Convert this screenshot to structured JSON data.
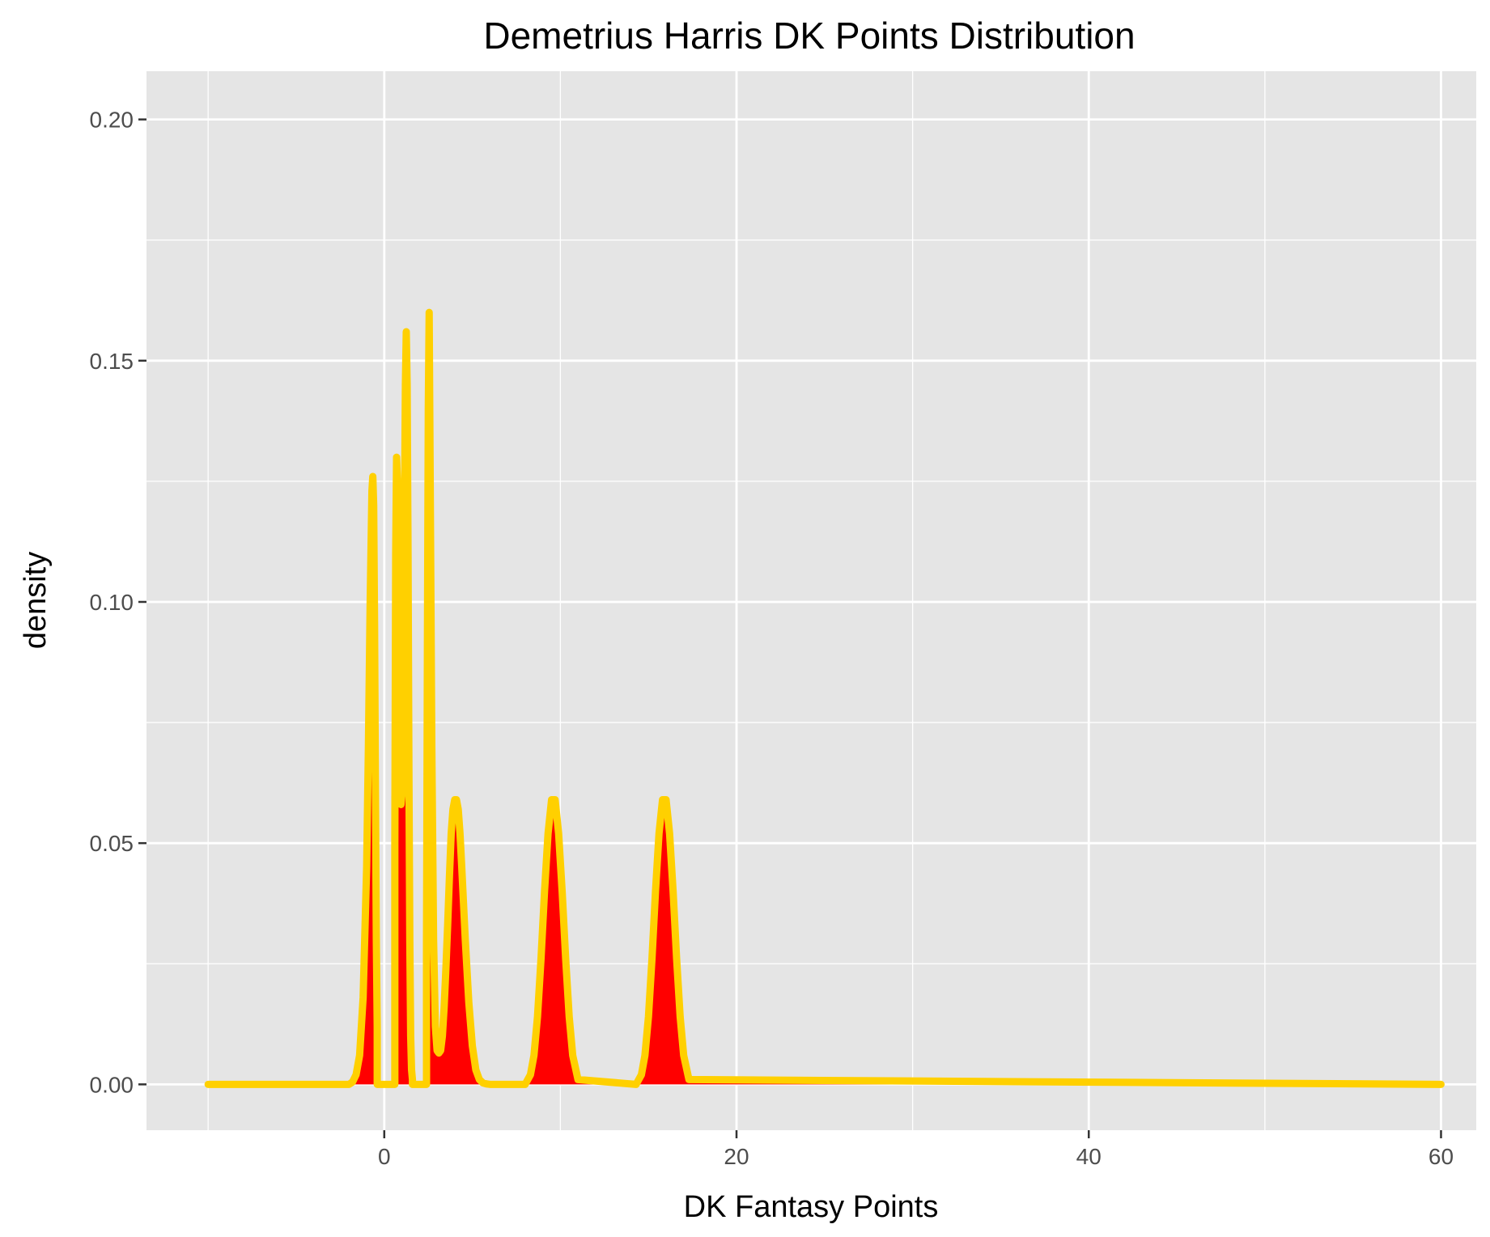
{
  "chart_data": {
    "type": "area",
    "title": "Demetrius Harris DK Points Distribution",
    "xlabel": "DK Fantasy Points",
    "ylabel": "density",
    "xlim": [
      -13.5,
      62
    ],
    "ylim": [
      -0.0095,
      0.21
    ],
    "x_ticks": [
      0,
      20,
      40,
      60
    ],
    "x_tick_labels": [
      "0",
      "20",
      "40",
      "60"
    ],
    "y_ticks": [
      0.0,
      0.05,
      0.1,
      0.15,
      0.2
    ],
    "y_tick_labels": [
      "0.00",
      "0.05",
      "0.10",
      "0.15",
      "0.20"
    ],
    "x_minor_ticks": [
      -10,
      10,
      30,
      50
    ],
    "y_minor_ticks": [
      0.025,
      0.075,
      0.125,
      0.175
    ],
    "grid": true,
    "colors": {
      "fill": "#ff0000",
      "line": "#ffd000",
      "panel": "#e5e5e5",
      "grid": "#ffffff"
    },
    "series": [
      {
        "x": [
          -10,
          -2,
          -1.8,
          -1.6,
          -1.4,
          -1.2,
          -1.0,
          -0.9,
          -0.8,
          -0.7,
          -0.65,
          -0.6,
          -0.55,
          -0.5,
          -0.45,
          -0.4,
          -0.4,
          0.6,
          0.6,
          0.65,
          0.7,
          0.75,
          0.8,
          0.85,
          0.9,
          0.95,
          1.0,
          1.05,
          1.1,
          1.15,
          1.2,
          1.25,
          1.3,
          1.35,
          1.4,
          1.45,
          1.5,
          1.55,
          1.6,
          1.6,
          2.4,
          2.4,
          2.45,
          2.5,
          2.55,
          2.6,
          2.7,
          2.8,
          2.9,
          3.0,
          3.1,
          3.2,
          3.3,
          3.4,
          3.5,
          3.6,
          3.7,
          3.8,
          3.9,
          4.0,
          4.1,
          4.2,
          4.3,
          4.4,
          4.6,
          4.8,
          5.0,
          5.2,
          5.4,
          5.6,
          5.8,
          6.0,
          6.3,
          8.0,
          8.3,
          8.5,
          8.7,
          8.9,
          9.1,
          9.3,
          9.5,
          9.7,
          9.9,
          10.1,
          10.3,
          10.5,
          10.7,
          11.0,
          14.3,
          14.6,
          14.8,
          15.0,
          15.2,
          15.4,
          15.6,
          15.8,
          16.0,
          16.2,
          16.4,
          16.6,
          16.8,
          17.0,
          17.3,
          60
        ],
        "y": [
          0,
          0,
          0.0005,
          0.002,
          0.006,
          0.018,
          0.045,
          0.07,
          0.1,
          0.123,
          0.126,
          0.12,
          0.095,
          0.06,
          0.03,
          0.012,
          0,
          0,
          0.05,
          0.11,
          0.13,
          0.125,
          0.1,
          0.072,
          0.06,
          0.058,
          0.06,
          0.065,
          0.09,
          0.12,
          0.145,
          0.156,
          0.145,
          0.11,
          0.065,
          0.03,
          0.01,
          0.003,
          0.001,
          0,
          0,
          0.03,
          0.09,
          0.14,
          0.16,
          0.13,
          0.07,
          0.03,
          0.012,
          0.007,
          0.0065,
          0.007,
          0.01,
          0.016,
          0.024,
          0.033,
          0.043,
          0.052,
          0.057,
          0.059,
          0.059,
          0.057,
          0.052,
          0.045,
          0.03,
          0.017,
          0.008,
          0.003,
          0.001,
          0.0003,
          0.0001,
          0,
          0,
          0,
          0.002,
          0.006,
          0.014,
          0.026,
          0.04,
          0.052,
          0.059,
          0.059,
          0.052,
          0.04,
          0.026,
          0.014,
          0.006,
          0.001,
          0,
          0.002,
          0.006,
          0.014,
          0.026,
          0.04,
          0.052,
          0.059,
          0.059,
          0.052,
          0.04,
          0.026,
          0.014,
          0.006,
          0.001,
          0
        ]
      }
    ]
  }
}
